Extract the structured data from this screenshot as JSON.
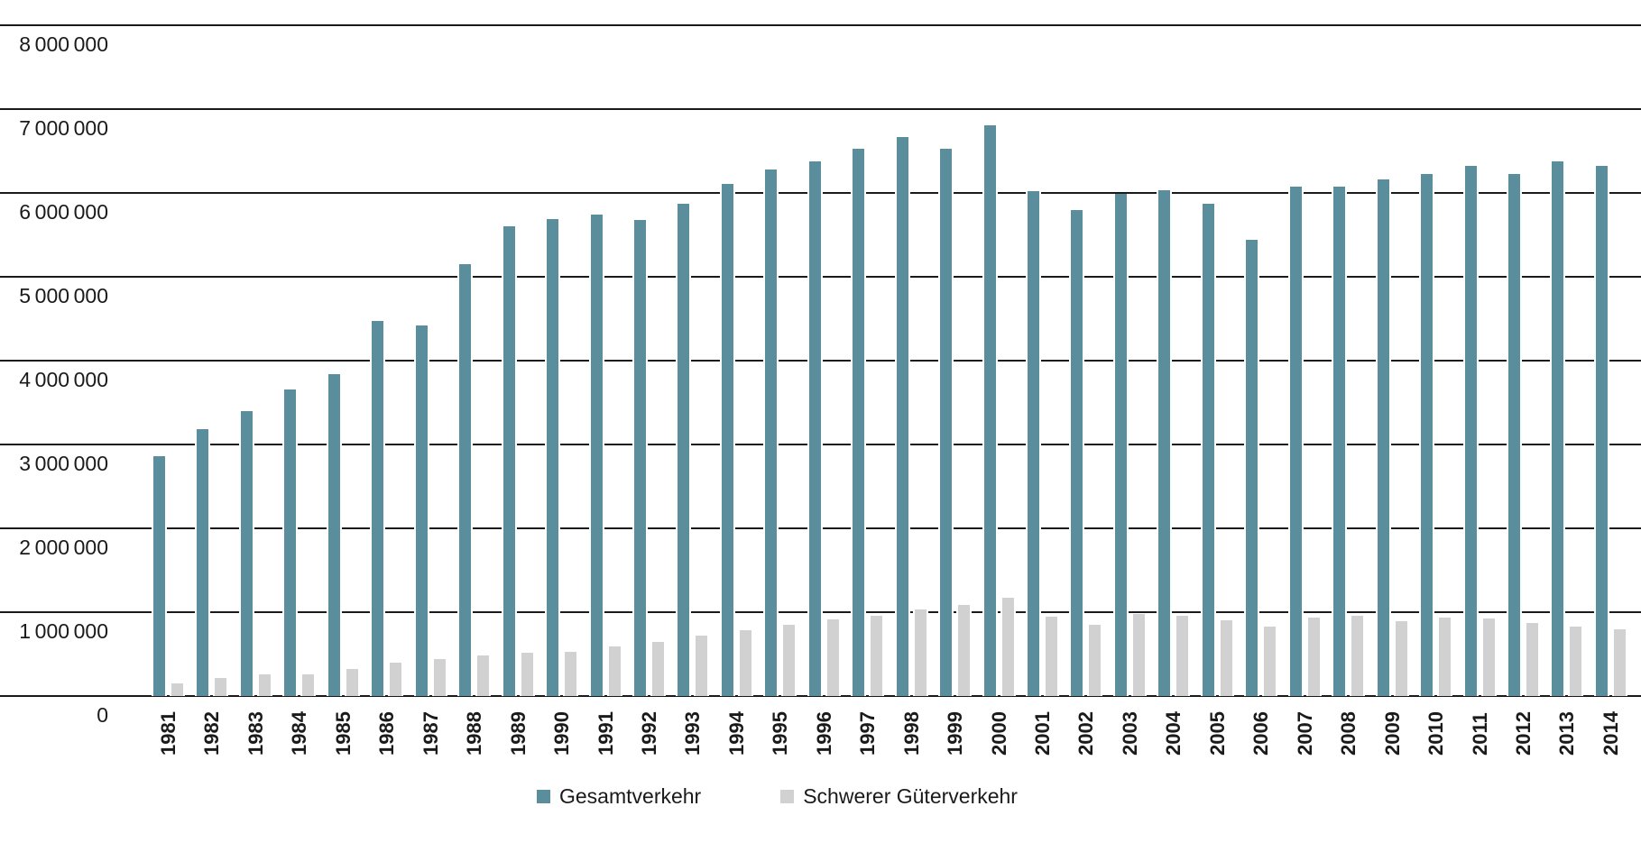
{
  "chart_data": {
    "type": "bar",
    "title": "",
    "categories": [
      "1981",
      "1982",
      "1983",
      "1984",
      "1985",
      "1986",
      "1987",
      "1988",
      "1989",
      "1990",
      "1991",
      "1992",
      "1993",
      "1994",
      "1995",
      "1996",
      "1997",
      "1998",
      "1999",
      "2000",
      "2001",
      "2002",
      "2003",
      "2004",
      "2005",
      "2006",
      "2007",
      "2008",
      "2009",
      "2010",
      "2011",
      "2012",
      "2013",
      "2014"
    ],
    "series": [
      {
        "name": "Gesamtverkehr",
        "color": "#5b8e9c",
        "values": [
          2860000,
          3180000,
          3400000,
          3660000,
          3840000,
          4470000,
          4420000,
          5150000,
          5600000,
          5690000,
          5740000,
          5680000,
          5870000,
          6110000,
          6280000,
          6380000,
          6530000,
          6670000,
          6530000,
          6810000,
          6020000,
          5800000,
          5990000,
          6030000,
          5870000,
          5440000,
          6070000,
          6070000,
          6160000,
          6230000,
          6320000,
          6230000,
          6380000,
          6320000
        ]
      },
      {
        "name": "Schwerer Güterverkehr",
        "color": "#d1d1d1",
        "values": [
          150000,
          220000,
          260000,
          260000,
          320000,
          400000,
          440000,
          480000,
          520000,
          530000,
          590000,
          640000,
          720000,
          780000,
          850000,
          910000,
          960000,
          1030000,
          1090000,
          1170000,
          950000,
          850000,
          975000,
          955000,
          905000,
          830000,
          940000,
          960000,
          895000,
          935000,
          920000,
          875000,
          830000,
          800000
        ]
      }
    ],
    "ylim": [
      0,
      8000000
    ],
    "y_tick_interval": 1000000,
    "y_tick_labels": [
      "0",
      "1 000 000",
      "2 000 000",
      "3 000 000",
      "4 000 000",
      "5 000 000",
      "6 000 000",
      "7 000 000",
      "8 000 000"
    ],
    "grid": "horizontal",
    "legend_position": "bottom",
    "colors": {
      "gridline": "#1a1a1a",
      "text": "#1a1a1a",
      "background": "#ffffff"
    }
  }
}
